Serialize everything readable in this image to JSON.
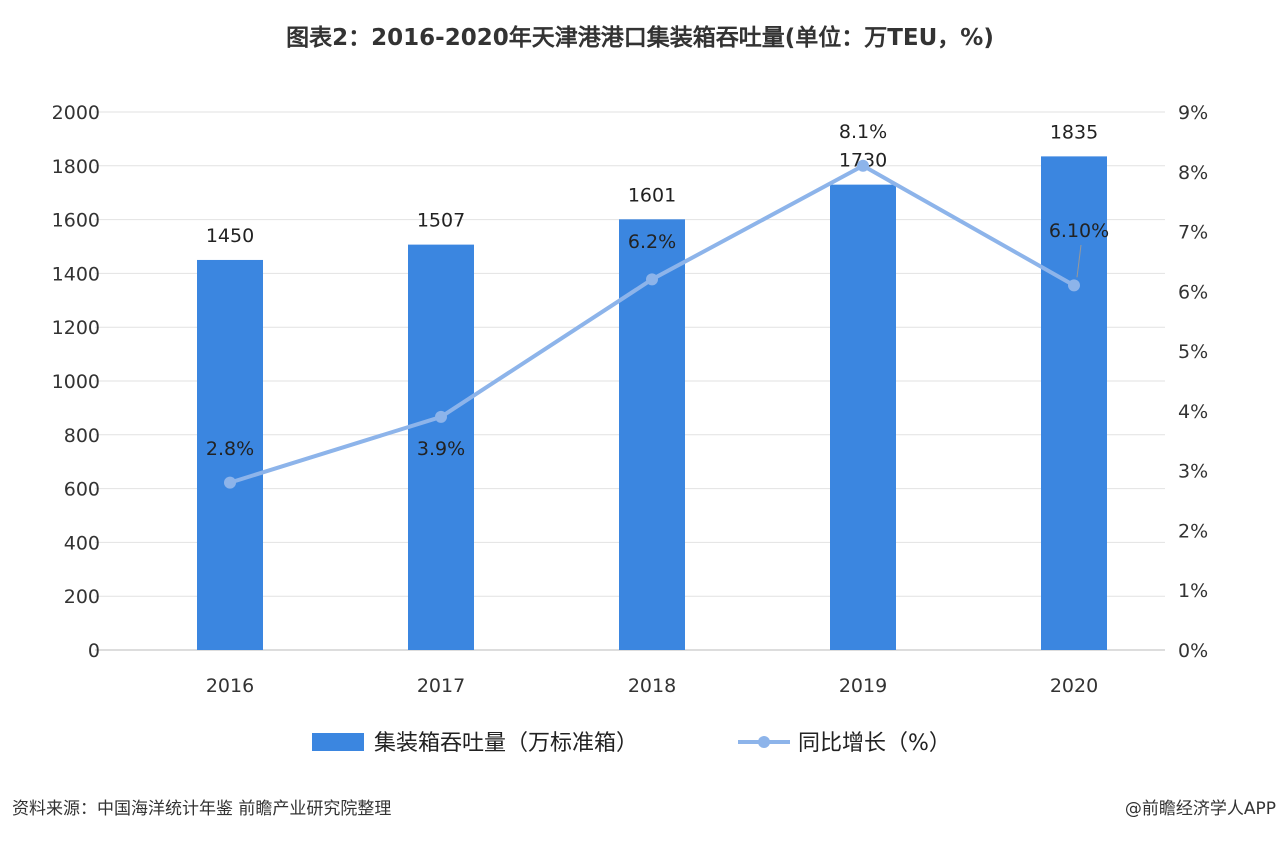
{
  "chart_data": {
    "type": "bar+line",
    "title": "图表2：2016-2020年天津港港口集装箱吞吐量(单位：万TEU，%)",
    "categories": [
      "2016",
      "2017",
      "2018",
      "2019",
      "2020"
    ],
    "series": [
      {
        "name": "集装箱吞吐量（万标准箱）",
        "type": "bar",
        "axis": "left",
        "values": [
          1450,
          1507,
          1601,
          1730,
          1835
        ],
        "labels": [
          "1450",
          "1507",
          "1601",
          "1730",
          "1835"
        ],
        "color": "#3b86e0"
      },
      {
        "name": "同比增长（%）",
        "type": "line",
        "axis": "right",
        "values": [
          2.8,
          3.9,
          6.2,
          8.1,
          6.1
        ],
        "labels": [
          "2.8%",
          "3.9%",
          "6.2%",
          "8.1%",
          "6.10%"
        ],
        "color": "#8db4ea"
      }
    ],
    "y_left": {
      "range": [
        0,
        2000
      ],
      "ticks": [
        "0",
        "200",
        "400",
        "600",
        "800",
        "1000",
        "1200",
        "1400",
        "1600",
        "1800",
        "2000"
      ]
    },
    "y_right": {
      "range": [
        0,
        9
      ],
      "ticks": [
        "0%",
        "1%",
        "2%",
        "3%",
        "4%",
        "5%",
        "6%",
        "7%",
        "8%",
        "9%"
      ]
    },
    "grid": true,
    "legend": "bottom"
  },
  "footer": {
    "source": "资料来源：中国海洋统计年鉴 前瞻产业研究院整理",
    "credit": "@前瞻经济学人APP"
  }
}
